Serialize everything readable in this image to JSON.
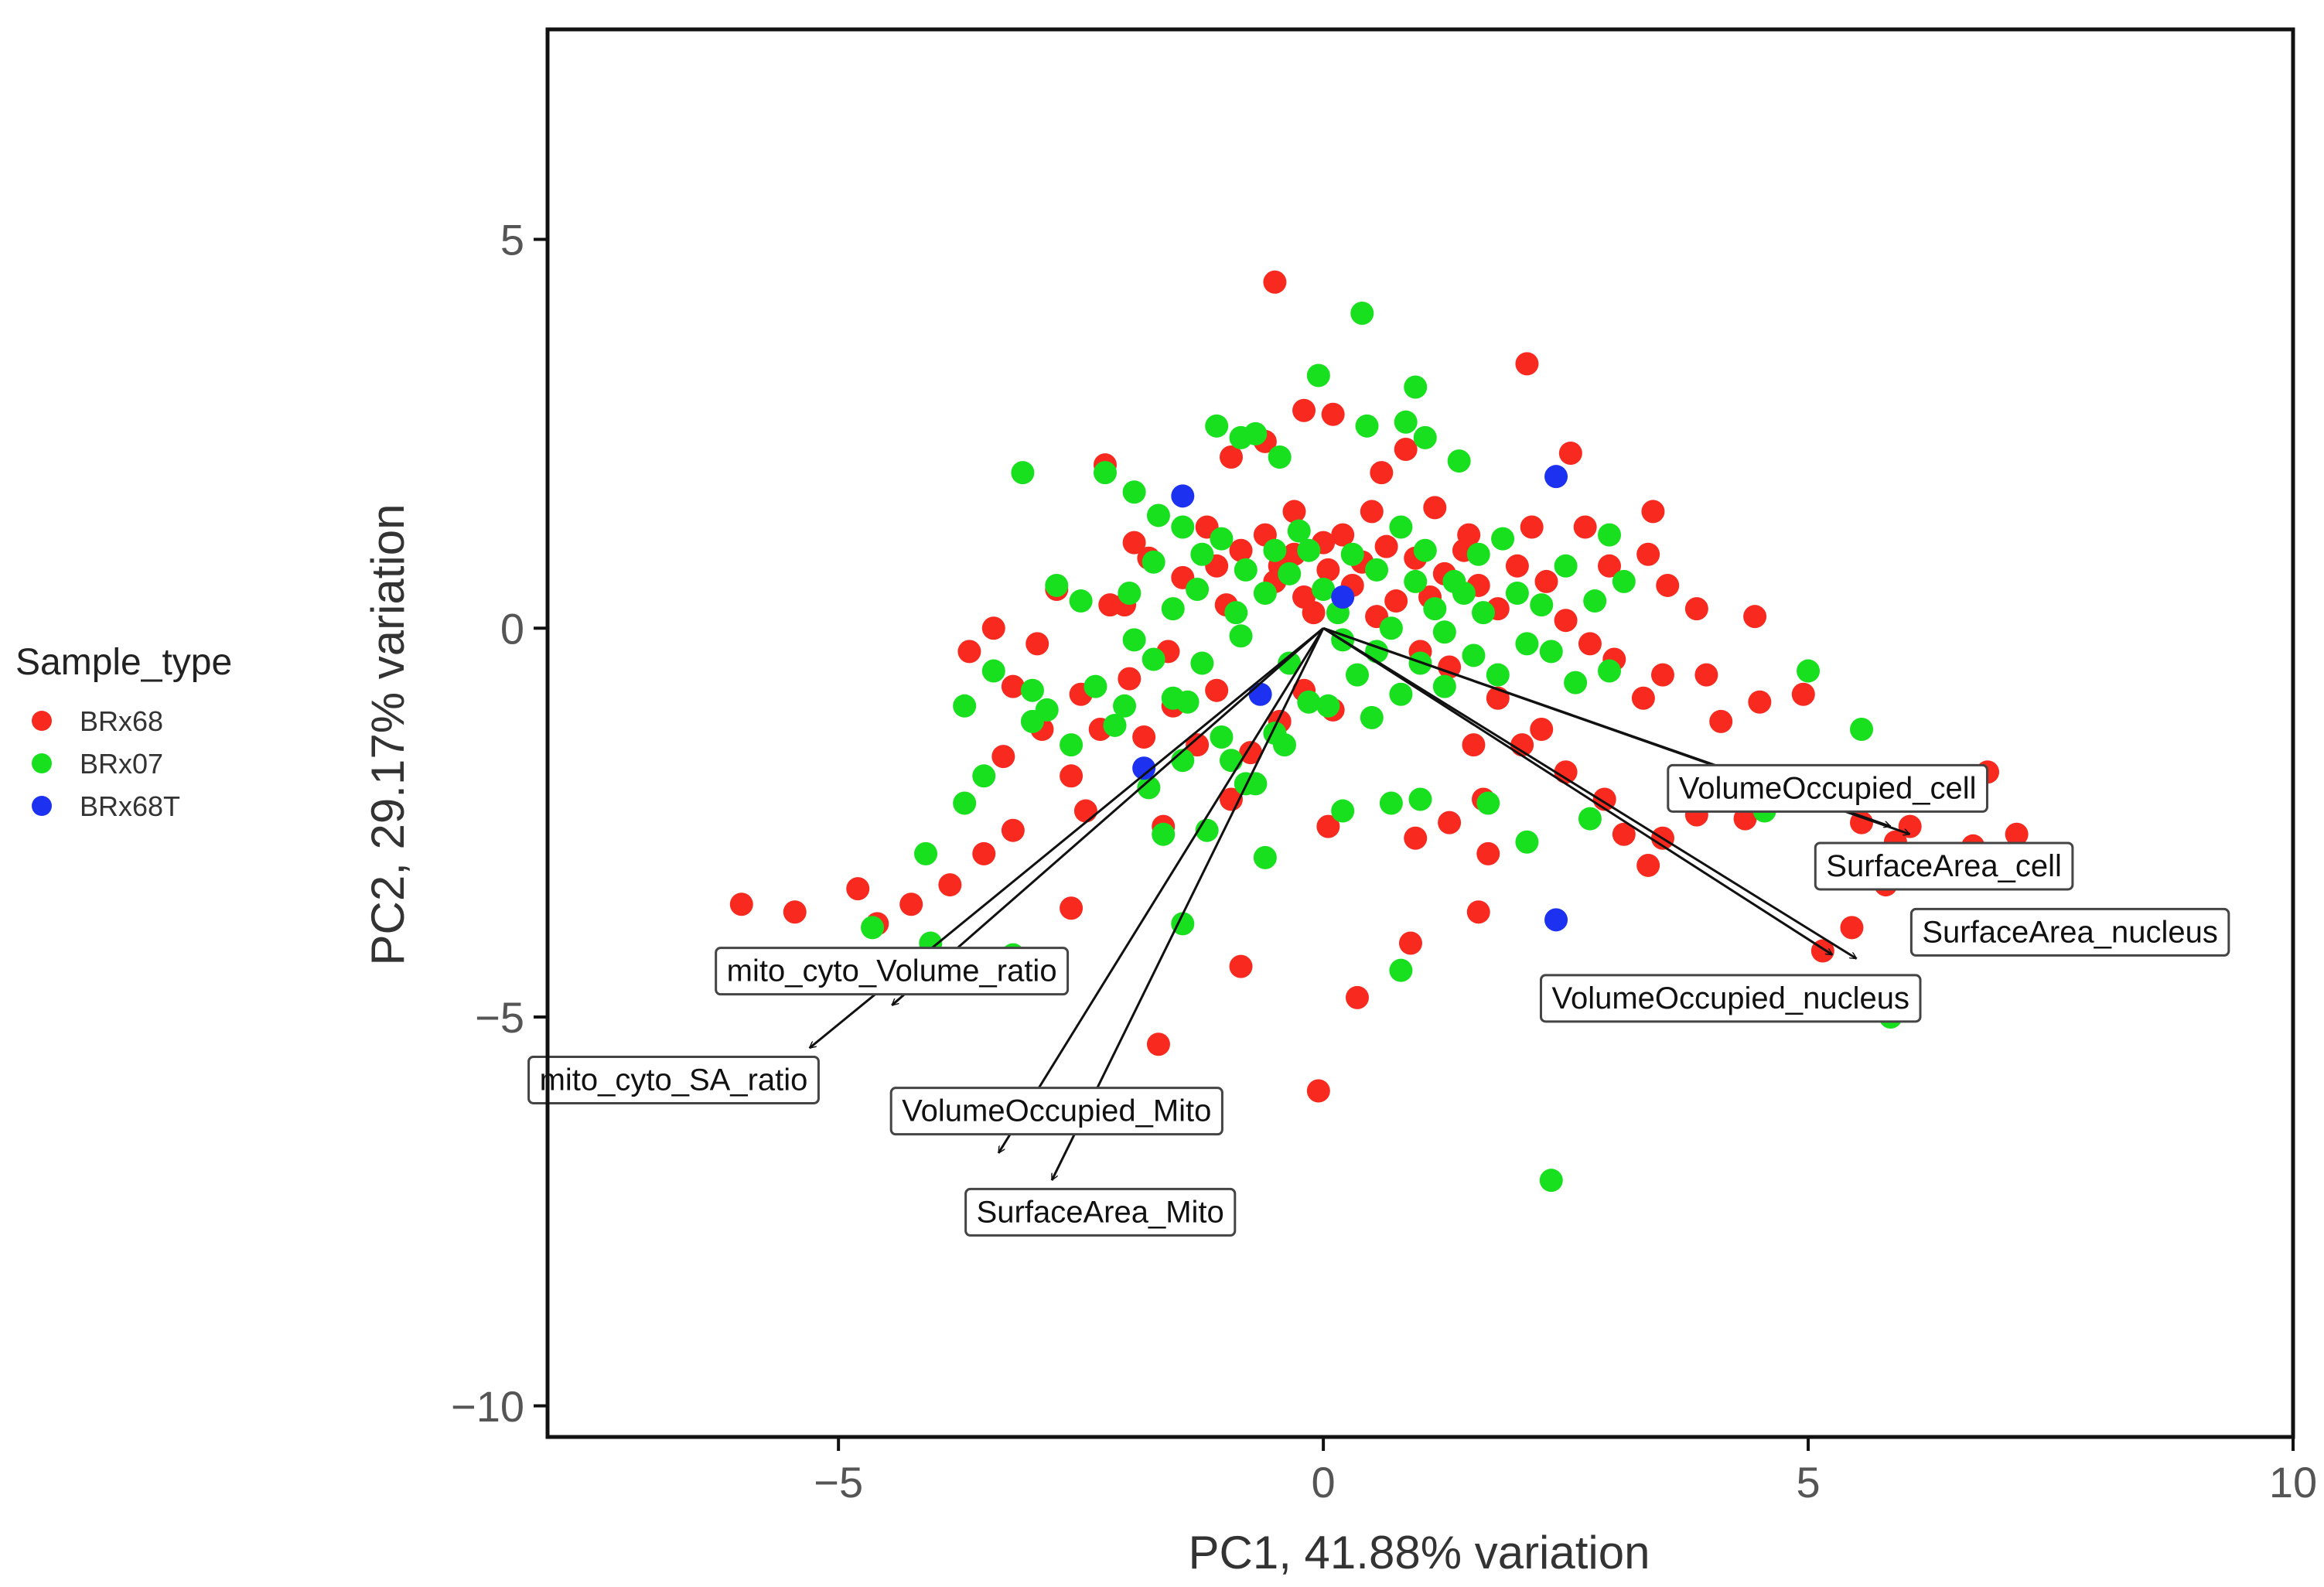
{
  "chart_data": {
    "type": "scatter",
    "title": "",
    "xlabel": "PC1, 41.88% variation",
    "ylabel": "PC2, 29.17% variation",
    "xlim": [
      -8,
      10
    ],
    "ylim": [
      -10.4,
      7.7
    ],
    "xticks": [
      -5,
      0,
      5,
      10
    ],
    "xtick_labels": [
      "−5",
      "0",
      "5",
      "10"
    ],
    "yticks": [
      5,
      0,
      -5,
      -10
    ],
    "ytick_labels": [
      "5",
      "0",
      "−5",
      "−10"
    ],
    "grid": false,
    "legend": {
      "title": "Sample_type",
      "position": "left",
      "entries": [
        {
          "name": "BRx68",
          "color": "#f8291e"
        },
        {
          "name": "BRx07",
          "color": "#18e01e"
        },
        {
          "name": "BRx68T",
          "color": "#1c32f0"
        }
      ]
    },
    "series": [
      {
        "name": "BRx68",
        "color": "#f8291e",
        "points": [
          [
            -6,
            -3.55
          ],
          [
            -5.45,
            -3.65
          ],
          [
            -4.8,
            -3.35
          ],
          [
            -4.25,
            -3.55
          ],
          [
            -4.6,
            -3.8
          ],
          [
            -3.85,
            -3.3
          ],
          [
            -3.5,
            -2.9
          ],
          [
            -3.2,
            -2.6
          ],
          [
            -2.6,
            -3.6
          ],
          [
            -3.65,
            -0.3
          ],
          [
            -3.4,
            0
          ],
          [
            -3.2,
            -0.75
          ],
          [
            -2.95,
            -0.2
          ],
          [
            -2.75,
            0.5
          ],
          [
            -2.9,
            -1.3
          ],
          [
            -2.6,
            -1.9
          ],
          [
            -2.3,
            -1.3
          ],
          [
            -2.2,
            0.3
          ],
          [
            -2.0,
            -0.65
          ],
          [
            -1.85,
            -1.4
          ],
          [
            -1.65,
            -2.55
          ],
          [
            -1.55,
            -1.0
          ],
          [
            -1.3,
            -1.5
          ],
          [
            -1.1,
            -0.8
          ],
          [
            -0.95,
            -2.2
          ],
          [
            -0.75,
            -1.6
          ],
          [
            -0.45,
            -1.2
          ],
          [
            -0.2,
            -0.8
          ],
          [
            0.1,
            -1.05
          ],
          [
            -2.25,
            2.1
          ],
          [
            -1.95,
            1.1
          ],
          [
            -1.8,
            0.9
          ],
          [
            -1.45,
            0.65
          ],
          [
            -1.2,
            1.3
          ],
          [
            -1.0,
            0.3
          ],
          [
            -0.85,
            1.0
          ],
          [
            -0.6,
            1.2
          ],
          [
            -0.45,
            0.8
          ],
          [
            -0.3,
            1.5
          ],
          [
            -0.2,
            0.4
          ],
          [
            -0.1,
            0.2
          ],
          [
            0.05,
            0.75
          ],
          [
            0.2,
            1.2
          ],
          [
            0.4,
            0.85
          ],
          [
            0.55,
            0.15
          ],
          [
            0.75,
            0.35
          ],
          [
            0.95,
            0.9
          ],
          [
            1.1,
            0.4
          ],
          [
            1.25,
            0.7
          ],
          [
            1.45,
            1.0
          ],
          [
            1.6,
            0.55
          ],
          [
            1.8,
            0.25
          ],
          [
            2.0,
            0.8
          ],
          [
            2.15,
            1.3
          ],
          [
            2.3,
            0.6
          ],
          [
            2.5,
            0.1
          ],
          [
            2.75,
            -0.2
          ],
          [
            -0.95,
            2.2
          ],
          [
            -0.6,
            2.4
          ],
          [
            -0.2,
            2.8
          ],
          [
            0.1,
            2.75
          ],
          [
            0.6,
            2.0
          ],
          [
            0.85,
            2.3
          ],
          [
            1.15,
            1.55
          ],
          [
            1.5,
            1.2
          ],
          [
            -0.5,
            4.45
          ],
          [
            2.1,
            3.4
          ],
          [
            2.55,
            2.25
          ],
          [
            2.7,
            1.3
          ],
          [
            2.95,
            0.8
          ],
          [
            3.4,
            1.5
          ],
          [
            3.35,
            0.95
          ],
          [
            3.55,
            0.55
          ],
          [
            3.85,
            0.25
          ],
          [
            4.45,
            0.15
          ],
          [
            3.0,
            -0.4
          ],
          [
            3.3,
            -0.9
          ],
          [
            3.5,
            -0.6
          ],
          [
            3.95,
            -0.6
          ],
          [
            4.1,
            -1.2
          ],
          [
            4.5,
            -0.95
          ],
          [
            4.95,
            -0.85
          ],
          [
            3.7,
            -2.1
          ],
          [
            3.85,
            -2.4
          ],
          [
            3.5,
            -2.7
          ],
          [
            3.35,
            -3.05
          ],
          [
            3.1,
            -2.65
          ],
          [
            2.9,
            -2.2
          ],
          [
            2.5,
            -1.85
          ],
          [
            2.25,
            -1.3
          ],
          [
            2.05,
            -1.5
          ],
          [
            1.8,
            -0.9
          ],
          [
            1.55,
            -1.5
          ],
          [
            1.7,
            -2.9
          ],
          [
            1.6,
            -3.65
          ],
          [
            1.65,
            -2.2
          ],
          [
            1.3,
            -2.5
          ],
          [
            0.95,
            -2.7
          ],
          [
            0.9,
            -4.05
          ],
          [
            0.35,
            -4.75
          ],
          [
            -0.05,
            -5.95
          ],
          [
            -1.7,
            -5.35
          ],
          [
            -0.85,
            -4.35
          ],
          [
            0.05,
            -2.55
          ],
          [
            5.15,
            -2.0
          ],
          [
            5.55,
            -2.5
          ],
          [
            5.9,
            -2.75
          ],
          [
            6.05,
            -2.55
          ],
          [
            6.35,
            -3.05
          ],
          [
            6.7,
            -2.8
          ],
          [
            6.85,
            -1.85
          ],
          [
            7.15,
            -2.65
          ],
          [
            5.8,
            -3.3
          ],
          [
            5.45,
            -3.85
          ],
          [
            5.15,
            -4.15
          ],
          [
            4.65,
            -2.2
          ],
          [
            4.35,
            -2.45
          ],
          [
            -1.1,
            0.8
          ],
          [
            -0.5,
            0.6
          ],
          [
            0.3,
            0.55
          ],
          [
            0.0,
            1.1
          ],
          [
            0.5,
            1.5
          ],
          [
            -0.3,
            0.95
          ],
          [
            0.65,
            1.05
          ],
          [
            1.3,
            -0.5
          ],
          [
            1.0,
            -0.3
          ],
          [
            -1.6,
            -0.3
          ],
          [
            -2.05,
            0.3
          ],
          [
            -2.5,
            -0.85
          ],
          [
            -3.3,
            -1.65
          ],
          [
            -2.45,
            -2.35
          ]
        ]
      },
      {
        "name": "BRx07",
        "color": "#18e01e",
        "points": [
          [
            -4.65,
            -3.85
          ],
          [
            -4.1,
            -2.9
          ],
          [
            -4.05,
            -4.05
          ],
          [
            -3.7,
            -2.25
          ],
          [
            -3.5,
            -1.9
          ],
          [
            -3.2,
            -4.2
          ],
          [
            -3.7,
            -1.0
          ],
          [
            -3.4,
            -0.55
          ],
          [
            -3.0,
            -0.8
          ],
          [
            -2.85,
            -1.05
          ],
          [
            -2.75,
            0.55
          ],
          [
            -2.5,
            0.35
          ],
          [
            -2.35,
            -0.75
          ],
          [
            -2.15,
            -1.25
          ],
          [
            -1.95,
            -0.15
          ],
          [
            -1.75,
            -0.4
          ],
          [
            -1.55,
            -0.9
          ],
          [
            -1.25,
            -0.45
          ],
          [
            -1.05,
            -1.4
          ],
          [
            -0.85,
            -0.1
          ],
          [
            -0.7,
            -2.0
          ],
          [
            -0.5,
            -1.35
          ],
          [
            -0.35,
            -0.45
          ],
          [
            -0.15,
            -0.95
          ],
          [
            0.2,
            -0.15
          ],
          [
            0.35,
            -0.6
          ],
          [
            0.55,
            -0.3
          ],
          [
            0.8,
            -0.85
          ],
          [
            1.0,
            -0.45
          ],
          [
            1.25,
            -0.05
          ],
          [
            1.55,
            -0.35
          ],
          [
            1.8,
            -0.6
          ],
          [
            2.1,
            -0.2
          ],
          [
            2.35,
            -0.3
          ],
          [
            2.6,
            -0.7
          ],
          [
            2.95,
            -0.55
          ],
          [
            -3.1,
            2.0
          ],
          [
            -2.25,
            2.0
          ],
          [
            -1.95,
            1.75
          ],
          [
            -1.7,
            1.45
          ],
          [
            -1.45,
            1.3
          ],
          [
            -1.1,
            2.6
          ],
          [
            -0.85,
            2.45
          ],
          [
            -0.7,
            2.5
          ],
          [
            -0.45,
            2.2
          ],
          [
            -0.05,
            3.25
          ],
          [
            0.4,
            4.05
          ],
          [
            0.95,
            3.1
          ],
          [
            0.45,
            2.6
          ],
          [
            0.85,
            2.65
          ],
          [
            1.05,
            2.45
          ],
          [
            1.4,
            2.15
          ],
          [
            -1.05,
            1.15
          ],
          [
            -0.8,
            0.75
          ],
          [
            -0.5,
            1.0
          ],
          [
            -0.25,
            1.25
          ],
          [
            0.0,
            0.5
          ],
          [
            0.3,
            0.95
          ],
          [
            0.55,
            0.75
          ],
          [
            0.8,
            1.3
          ],
          [
            1.05,
            1.0
          ],
          [
            1.35,
            0.6
          ],
          [
            1.6,
            0.95
          ],
          [
            1.85,
            1.15
          ],
          [
            2.0,
            0.45
          ],
          [
            2.25,
            0.3
          ],
          [
            2.5,
            0.8
          ],
          [
            2.8,
            0.35
          ],
          [
            2.95,
            1.2
          ],
          [
            3.1,
            0.6
          ],
          [
            -1.3,
            0.5
          ],
          [
            -1.55,
            0.25
          ],
          [
            -0.9,
            0.2
          ],
          [
            -0.6,
            0.45
          ],
          [
            -0.35,
            0.7
          ],
          [
            0.15,
            0.2
          ],
          [
            0.7,
            0.0
          ],
          [
            1.15,
            0.25
          ],
          [
            1.45,
            0.45
          ],
          [
            5.0,
            -0.55
          ],
          [
            5.55,
            -1.3
          ],
          [
            6.4,
            -2.15
          ],
          [
            4.55,
            -2.35
          ],
          [
            5.85,
            -5.0
          ],
          [
            2.35,
            -7.1
          ],
          [
            0.8,
            -4.4
          ],
          [
            -1.45,
            -3.8
          ],
          [
            -1.2,
            -2.6
          ],
          [
            -1.65,
            -2.65
          ],
          [
            -1.8,
            -2.05
          ],
          [
            -1.45,
            -1.7
          ],
          [
            -0.6,
            -2.95
          ],
          [
            -0.8,
            -2.0
          ],
          [
            0.2,
            -2.35
          ],
          [
            0.7,
            -2.25
          ],
          [
            1.0,
            -2.2
          ],
          [
            1.7,
            -2.25
          ],
          [
            2.1,
            -2.75
          ],
          [
            2.75,
            -2.45
          ],
          [
            -0.95,
            -1.7
          ],
          [
            -0.4,
            -1.5
          ],
          [
            0.05,
            -1.0
          ],
          [
            -1.4,
            -0.95
          ],
          [
            -2.05,
            -1.0
          ],
          [
            -2.6,
            -1.5
          ],
          [
            -3.0,
            -1.2
          ],
          [
            -2.0,
            0.45
          ],
          [
            -1.75,
            0.85
          ],
          [
            -1.25,
            0.95
          ],
          [
            -0.15,
            1.0
          ],
          [
            0.95,
            0.6
          ],
          [
            1.65,
            0.2
          ],
          [
            1.25,
            -0.75
          ],
          [
            0.5,
            -1.15
          ]
        ]
      },
      {
        "name": "BRx68T",
        "color": "#1c32f0",
        "points": [
          [
            -1.45,
            1.7
          ],
          [
            2.4,
            1.95
          ],
          [
            -0.65,
            -0.85
          ],
          [
            -1.85,
            -1.8
          ],
          [
            0.2,
            0.4
          ],
          [
            2.4,
            -3.75
          ]
        ]
      }
    ],
    "loadings": [
      {
        "label": "VolumeOccupied_cell",
        "x": 5.85,
        "y": -2.55,
        "label_pos": [
          5.2,
          -2.05
        ]
      },
      {
        "label": "SurfaceArea_cell",
        "x": 6.05,
        "y": -2.65,
        "label_pos": [
          6.4,
          -3.05
        ]
      },
      {
        "label": "SurfaceArea_nucleus",
        "x": 5.25,
        "y": -4.2,
        "label_pos": [
          7.7,
          -3.9
        ]
      },
      {
        "label": "VolumeOccupied_nucleus",
        "x": 5.5,
        "y": -4.25,
        "label_pos": [
          4.2,
          -4.75
        ]
      },
      {
        "label": "mito_cyto_Volume_ratio",
        "x": -4.45,
        "y": -4.85,
        "label_pos": [
          -4.45,
          -4.4
        ]
      },
      {
        "label": "mito_cyto_SA_ratio",
        "x": -5.3,
        "y": -5.4,
        "label_pos": [
          -6.7,
          -5.8
        ]
      },
      {
        "label": "VolumeOccupied_Mito",
        "x": -3.35,
        "y": -6.75,
        "label_pos": [
          -2.75,
          -6.2
        ]
      },
      {
        "label": "SurfaceArea_Mito",
        "x": -2.8,
        "y": -7.1,
        "label_pos": [
          -2.3,
          -7.5
        ]
      }
    ]
  }
}
